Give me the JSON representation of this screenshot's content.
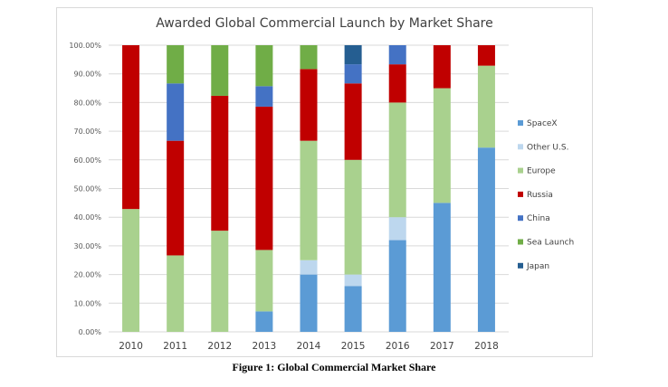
{
  "chart_data": {
    "type": "bar",
    "stacked": true,
    "title": "Awarded Global Commercial Launch by Market Share",
    "caption": "Figure 1: Global Commercial Market Share",
    "categories": [
      "2010",
      "2011",
      "2012",
      "2013",
      "2014",
      "2015",
      "2016",
      "2017",
      "2018"
    ],
    "ylim": [
      0,
      100
    ],
    "yticks": [
      "0.00%",
      "10.00%",
      "20.00%",
      "30.00%",
      "40.00%",
      "50.00%",
      "60.00%",
      "70.00%",
      "80.00%",
      "90.00%",
      "100.00%"
    ],
    "grid": true,
    "legend_position": "right",
    "series": [
      {
        "name": "SpaceX",
        "color": "#5b9bd5",
        "values": [
          0,
          0,
          0,
          7.14,
          20,
          16,
          32,
          45,
          64.29
        ]
      },
      {
        "name": "Other U.S.",
        "color": "#bdd7ee",
        "values": [
          0,
          0,
          0,
          0,
          5,
          4,
          8,
          0,
          0
        ]
      },
      {
        "name": "Europe",
        "color": "#a9d18e",
        "values": [
          42.86,
          26.67,
          35.29,
          21.43,
          41.67,
          40,
          40,
          40,
          28.57
        ]
      },
      {
        "name": "Russia",
        "color": "#c00000",
        "values": [
          57.14,
          40,
          47.06,
          50,
          25,
          26.67,
          13.33,
          15,
          7.14
        ]
      },
      {
        "name": "China",
        "color": "#4472c4",
        "values": [
          0,
          20,
          0,
          7.14,
          0,
          6.67,
          6.67,
          0,
          0
        ]
      },
      {
        "name": "Sea Launch",
        "color": "#70ad47",
        "values": [
          0,
          13.33,
          17.65,
          14.29,
          8.33,
          0,
          0,
          0,
          0
        ]
      },
      {
        "name": "Japan",
        "color": "#255e91",
        "values": [
          0,
          0,
          0,
          0,
          0,
          6.67,
          0,
          0,
          0
        ]
      }
    ]
  }
}
